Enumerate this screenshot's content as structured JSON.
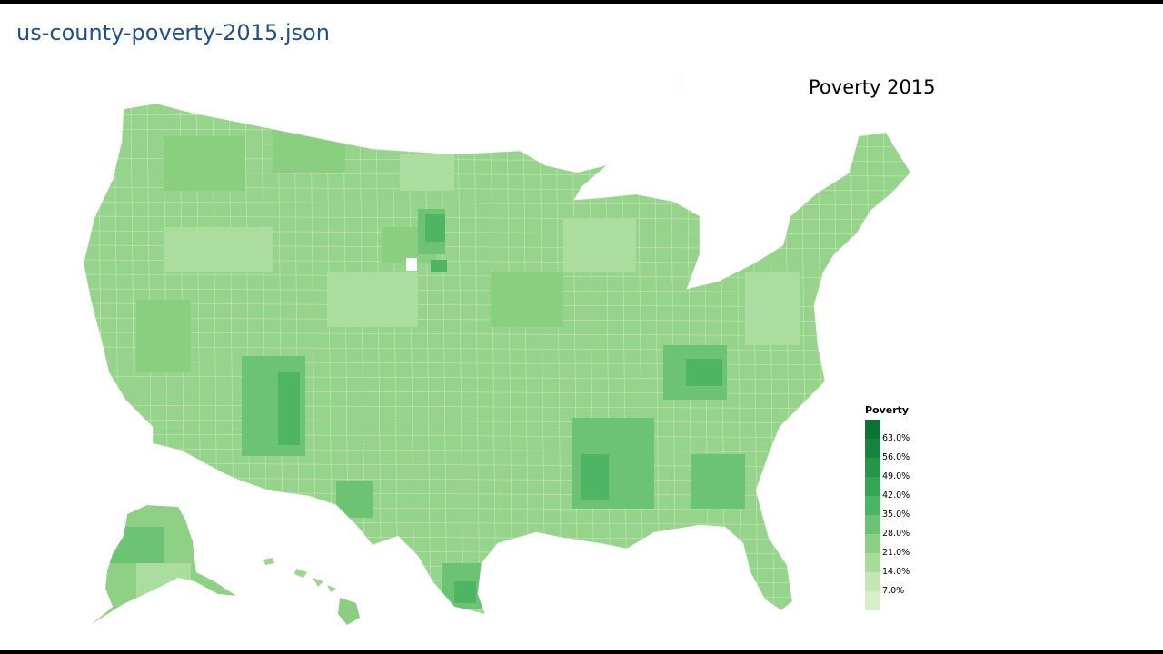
{
  "file_name": "us-county-poverty-2015.json",
  "map": {
    "title": "Poverty 2015",
    "legend": {
      "title": "Poverty",
      "labels": [
        "63.0%",
        "56.0%",
        "49.0%",
        "42.0%",
        "35.0%",
        "28.0%",
        "21.0%",
        "14.0%",
        "7.0%"
      ],
      "colors": [
        "#0d7236",
        "#16843f",
        "#25954a",
        "#35a555",
        "#4cb563",
        "#69c372",
        "#8ad183",
        "#a8dc99",
        "#c3e7b3",
        "#d5efc8"
      ]
    },
    "regions": [
      "contiguous-us",
      "alaska",
      "hawaii"
    ],
    "land_color": "#95d489"
  }
}
